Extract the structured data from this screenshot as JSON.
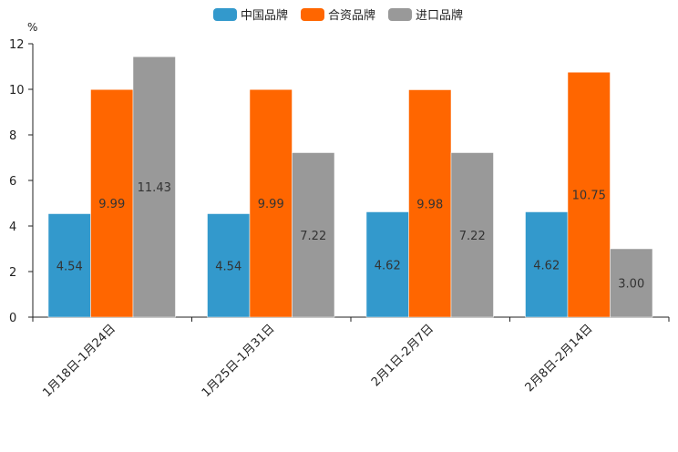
{
  "chart_data": {
    "type": "bar",
    "unit": "%",
    "categories": [
      "1月18日-1月24日",
      "1月25日-1月31日",
      "2月1日-2月7日",
      "2月8日-2月14日"
    ],
    "series": [
      {
        "name": "中国品牌",
        "color": "#3399cc",
        "values": [
          4.54,
          4.54,
          4.62,
          4.62
        ],
        "labels": [
          "4.54",
          "4.54",
          "4.62",
          "4.62"
        ]
      },
      {
        "name": "合资品牌",
        "color": "#ff6600",
        "values": [
          9.99,
          9.99,
          9.98,
          10.75
        ],
        "labels": [
          "9.99",
          "9.99",
          "9.98",
          "10.75"
        ]
      },
      {
        "name": "进口品牌",
        "color": "#999999",
        "values": [
          11.43,
          7.22,
          7.22,
          3.0
        ],
        "labels": [
          "11.43",
          "7.22",
          "7.22",
          "3.00"
        ]
      }
    ],
    "yticks": [
      "0",
      "2",
      "4",
      "6",
      "8",
      "10",
      "12"
    ],
    "ylim": [
      0,
      12
    ],
    "legend_position": "top-center",
    "grid": false
  }
}
